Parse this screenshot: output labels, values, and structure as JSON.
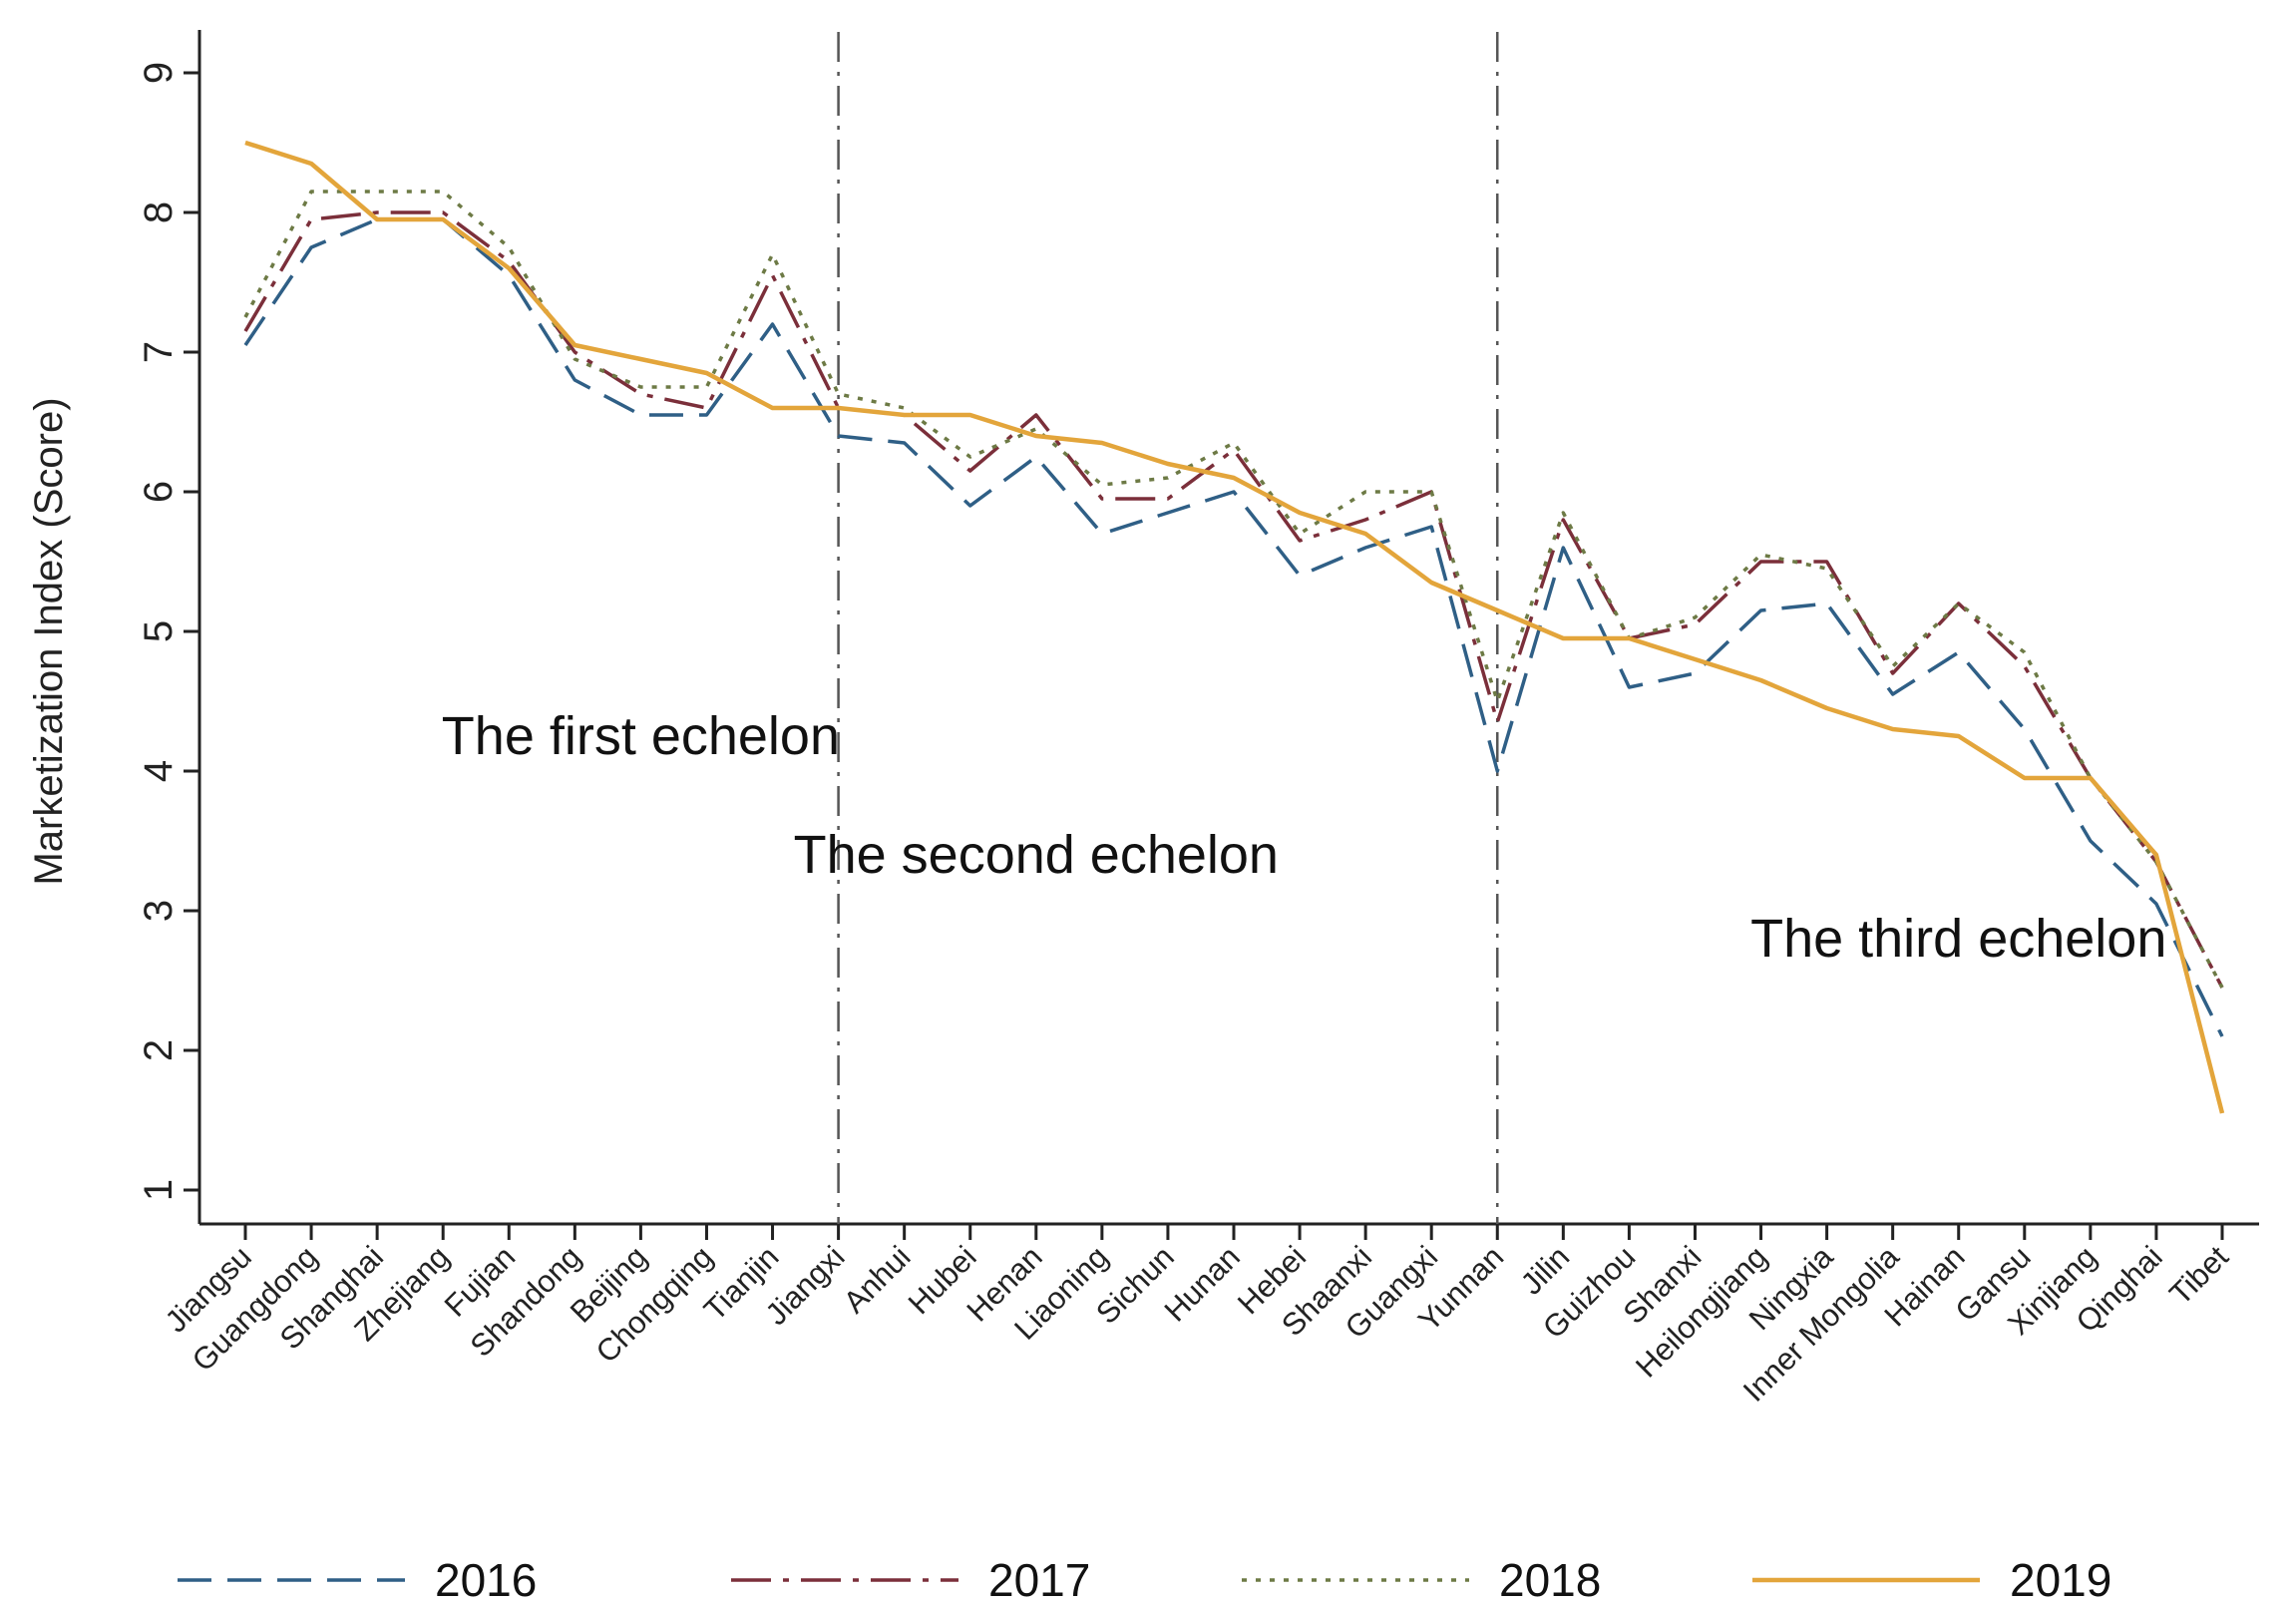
{
  "chart_data": {
    "type": "line",
    "title": "",
    "xlabel": "",
    "ylabel": "Marketization Index (Score)",
    "ylim": [
      0.7,
      9.5
    ],
    "yticks": [
      1,
      2,
      3,
      4,
      5,
      6,
      7,
      8,
      9
    ],
    "categories": [
      "Jiangsu",
      "Guangdong",
      "Shanghai",
      "Zhejiang",
      "Fujian",
      "Shandong",
      "Beijing",
      "Chongqing",
      "Tianjin",
      "Jiangxi",
      "Anhui",
      "Hubei",
      "Henan",
      "Liaoning",
      "Sichun",
      "Hunan",
      "Hebei",
      "Shaanxi",
      "Guangxi",
      "Yunnan",
      "Jilin",
      "Guizhou",
      "Shanxi",
      "Heilongjiang",
      "Ningxia",
      "Inner Mongolia",
      "Hainan",
      "Gansu",
      "Xinjiang",
      "Qinghai",
      "Tibet"
    ],
    "series": [
      {
        "name": "2016",
        "color": "#2f5f86",
        "style": "dashed",
        "values": [
          7.05,
          7.75,
          7.95,
          7.95,
          7.55,
          6.8,
          6.55,
          6.55,
          7.2,
          6.4,
          6.35,
          5.9,
          6.25,
          5.7,
          5.85,
          6.0,
          5.4,
          5.6,
          5.75,
          4.0,
          5.6,
          4.6,
          4.7,
          5.15,
          5.2,
          4.55,
          4.85,
          4.3,
          3.5,
          3.05,
          2.1
        ]
      },
      {
        "name": "2017",
        "color": "#7b2f3a",
        "style": "dashdot",
        "values": [
          7.15,
          7.95,
          8.0,
          8.0,
          7.65,
          7.0,
          6.7,
          6.6,
          7.55,
          6.6,
          6.55,
          6.15,
          6.55,
          5.95,
          5.95,
          6.3,
          5.65,
          5.8,
          6.0,
          4.35,
          5.8,
          4.95,
          5.05,
          5.5,
          5.5,
          4.7,
          5.2,
          4.75,
          3.95,
          3.35,
          2.45
        ]
      },
      {
        "name": "2018",
        "color": "#6d7a45",
        "style": "dotted",
        "values": [
          7.25,
          8.15,
          8.15,
          8.15,
          7.75,
          6.95,
          6.75,
          6.75,
          7.7,
          6.7,
          6.6,
          6.25,
          6.45,
          6.05,
          6.1,
          6.35,
          5.7,
          6.0,
          6.0,
          4.5,
          5.85,
          4.95,
          5.1,
          5.55,
          5.45,
          4.75,
          5.2,
          4.85,
          3.95,
          3.35,
          2.45
        ]
      },
      {
        "name": "2019",
        "color": "#e3a53b",
        "style": "solid",
        "values": [
          8.5,
          8.35,
          7.95,
          7.95,
          7.6,
          7.05,
          6.95,
          6.85,
          6.6,
          6.6,
          6.55,
          6.55,
          6.4,
          6.35,
          6.2,
          6.1,
          5.85,
          5.7,
          5.35,
          5.15,
          4.95,
          4.95,
          4.8,
          4.65,
          4.45,
          4.3,
          4.25,
          3.95,
          3.95,
          3.4,
          1.55
        ]
      }
    ],
    "vertical_lines_at": [
      "Jiangxi",
      "Yunnan"
    ],
    "annotations": [
      {
        "text": "The first echelon",
        "x_category": "Beijing",
        "y": 4.25
      },
      {
        "text": "The second echelon",
        "x_category": "Henan",
        "y": 3.4
      },
      {
        "text": "The third echelon",
        "x_category": "Hainan",
        "y": 2.8
      }
    ],
    "legend": {
      "placement": "bottom",
      "entries": [
        "2016",
        "2017",
        "2018",
        "2019"
      ]
    },
    "grid": false
  }
}
